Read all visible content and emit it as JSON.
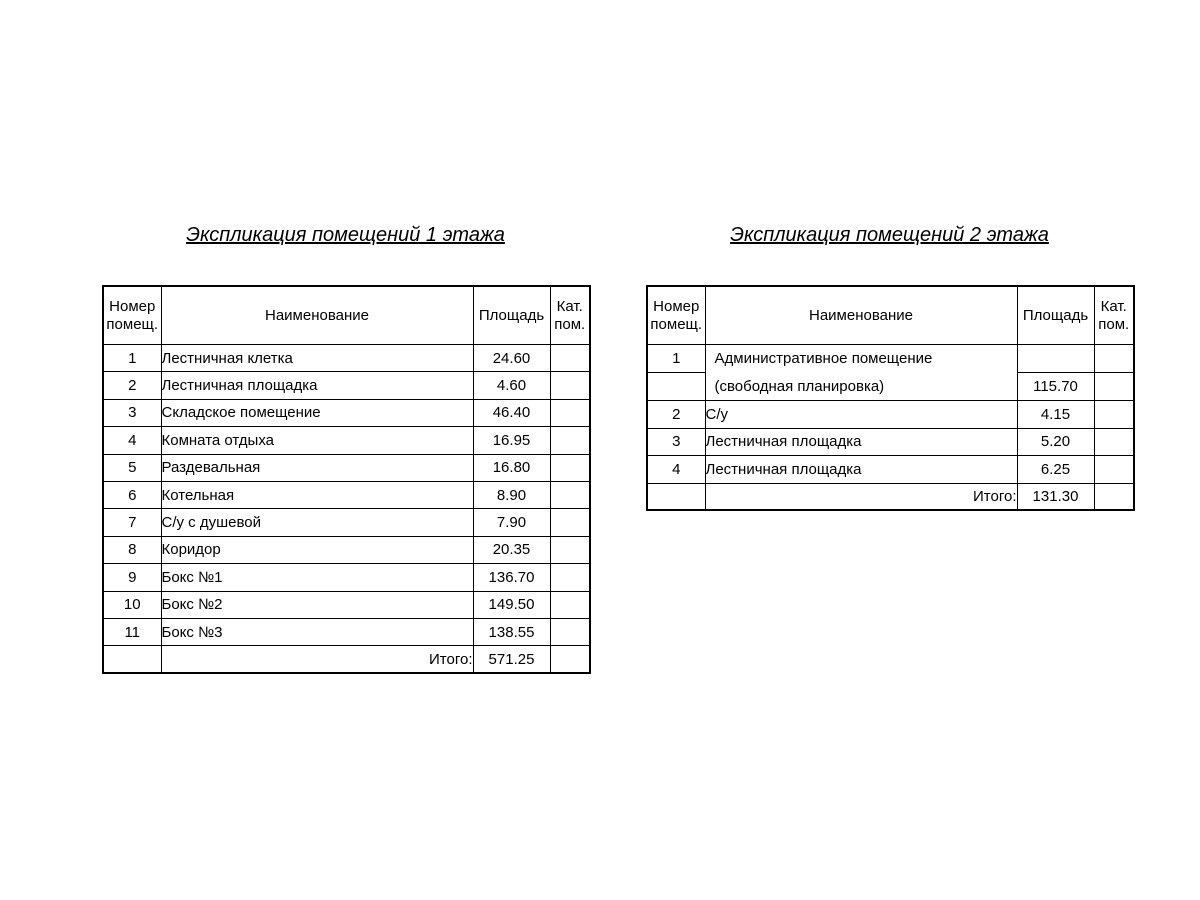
{
  "page": {
    "background": "#ffffff",
    "text_color": "#000000",
    "border_color": "#000000"
  },
  "floor1": {
    "title": "Экспликация помещений 1 этажа",
    "header": {
      "number": "Номер\nпомещ.",
      "name": "Наименование",
      "area": "Площадь",
      "category": "Кат.\nпом."
    },
    "rows": [
      {
        "num": "1",
        "name": "Лестничная клетка",
        "area": "24.60",
        "cat": ""
      },
      {
        "num": "2",
        "name": "Лестничная площадка",
        "area": "4.60",
        "cat": ""
      },
      {
        "num": "3",
        "name": "Складское помещение",
        "area": "46.40",
        "cat": ""
      },
      {
        "num": "4",
        "name": "Комната отдыха",
        "area": "16.95",
        "cat": ""
      },
      {
        "num": "5",
        "name": "Раздевальная",
        "area": "16.80",
        "cat": ""
      },
      {
        "num": "6",
        "name": "Котельная",
        "area": "8.90",
        "cat": ""
      },
      {
        "num": "7",
        "name": "С/у с душевой",
        "area": "7.90",
        "cat": ""
      },
      {
        "num": "8",
        "name": "Коридор",
        "area": "20.35",
        "cat": ""
      },
      {
        "num": "9",
        "name": "Бокс №1",
        "area": "136.70",
        "cat": ""
      },
      {
        "num": "10",
        "name": "Бокс №2",
        "area": "149.50",
        "cat": ""
      },
      {
        "num": "11",
        "name": "Бокс №3",
        "area": "138.55",
        "cat": ""
      }
    ],
    "total": {
      "label": "Итого:",
      "value": "571.25",
      "cat": ""
    }
  },
  "floor2": {
    "title": "Экспликация помещений 2 этажа",
    "header": {
      "number": "Номер\nпомещ.",
      "name": "Наименование",
      "area": "Площадь",
      "category": "Кат.\nпом."
    },
    "rows": [
      {
        "num": "1",
        "name": "Административное помещение",
        "area": "",
        "cat": ""
      },
      {
        "num": "",
        "name": "(свободная планировка)",
        "area": "115.70",
        "cat": ""
      },
      {
        "num": "2",
        "name": "С/у",
        "area": "4.15",
        "cat": ""
      },
      {
        "num": "3",
        "name": "Лестничная площадка",
        "area": "5.20",
        "cat": ""
      },
      {
        "num": "4",
        "name": "Лестничная площадка",
        "area": "6.25",
        "cat": ""
      }
    ],
    "total": {
      "label": "Итого:",
      "value": "131.30",
      "cat": ""
    }
  }
}
